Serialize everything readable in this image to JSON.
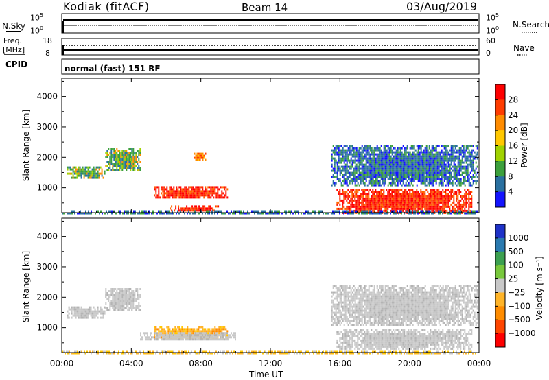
{
  "header": {
    "station": "Kodiak (fitACF)",
    "beam": "Beam 14",
    "date": "03/Aug/2019"
  },
  "side_labels": {
    "nsky": "N.Sky",
    "nsearch": "N.Search",
    "freq_line1": "Freq.",
    "freq_line2": "[MHz]",
    "nave": "Nave",
    "cpid": "CPID",
    "mode": "normal (fast) 151 RF"
  },
  "noise_panel": {
    "left_ticks": [
      "10^5",
      "10^0"
    ],
    "right_ticks": [
      "10^5",
      "10^0"
    ]
  },
  "freq_panel": {
    "left_ticks": [
      "18",
      "8"
    ],
    "right_ticks": [
      "60",
      "0"
    ]
  },
  "chart_data": [
    {
      "type": "heatmap",
      "name": "power",
      "ylabel": "Slant Range [km]",
      "ylim": [
        180,
        4600
      ],
      "yticks": [
        "4000",
        "3000",
        "2000",
        "1000"
      ],
      "xlim": [
        0,
        24
      ],
      "colorbar": {
        "label": "Power [dB]",
        "ticks": [
          "28",
          "24",
          "20",
          "16",
          "12",
          "8",
          "4"
        ],
        "colors": [
          "#ff0000",
          "#ff3c00",
          "#ff8c00",
          "#ffc800",
          "#a0d200",
          "#3ca03c",
          "#2a70a0",
          "#1414ff"
        ]
      },
      "regions": [
        {
          "t": [
            0.3,
            2.5
          ],
          "r": [
            1350,
            1700
          ],
          "level": "mid"
        },
        {
          "t": [
            2.5,
            4.5
          ],
          "r": [
            1600,
            2300
          ],
          "level": "mid"
        },
        {
          "t": [
            5.3,
            9.5
          ],
          "r": [
            650,
            1050
          ],
          "level": "high"
        },
        {
          "t": [
            6.2,
            9.0
          ],
          "r": [
            220,
            420
          ],
          "level": "high"
        },
        {
          "t": [
            7.6,
            8.3
          ],
          "r": [
            1900,
            2150
          ],
          "level": "mid-high"
        },
        {
          "t": [
            15.8,
            23.6
          ],
          "r": [
            200,
            950
          ],
          "level": "high"
        },
        {
          "t": [
            15.5,
            23.9
          ],
          "r": [
            1100,
            2400
          ],
          "level": "low"
        },
        {
          "t": [
            0.0,
            24.0
          ],
          "r": [
            190,
            260
          ],
          "level": "low"
        }
      ]
    },
    {
      "type": "heatmap",
      "name": "velocity",
      "ylabel": "Slant Range [km]",
      "ylim": [
        180,
        4600
      ],
      "yticks": [
        "4000",
        "3000",
        "2000",
        "1000"
      ],
      "xlim": [
        0,
        24
      ],
      "xlabel": "Time UT",
      "xticks": [
        "00:00",
        "04:00",
        "08:00",
        "12:00",
        "16:00",
        "20:00",
        "00:00"
      ],
      "colorbar": {
        "label": "Velocity [m s⁻¹]",
        "ticks": [
          "1000",
          "500",
          "100",
          "25",
          "−25",
          "−100",
          "−500",
          "−1000"
        ],
        "colors": [
          "#1e32c8",
          "#2a7ab0",
          "#3ca050",
          "#78c83c",
          "#c8c8c8",
          "#ffb428",
          "#ff8c00",
          "#ff4600",
          "#ff0000"
        ]
      },
      "regions": [
        {
          "t": [
            0.3,
            2.5
          ],
          "r": [
            1350,
            1700
          ],
          "level": "ground"
        },
        {
          "t": [
            2.5,
            4.5
          ],
          "r": [
            1600,
            2300
          ],
          "level": "ground"
        },
        {
          "t": [
            5.3,
            9.5
          ],
          "r": [
            650,
            1050
          ],
          "level": "neg-100"
        },
        {
          "t": [
            4.5,
            10.0
          ],
          "r": [
            600,
            850
          ],
          "level": "ground"
        },
        {
          "t": [
            15.8,
            23.6
          ],
          "r": [
            300,
            950
          ],
          "level": "ground"
        },
        {
          "t": [
            15.5,
            23.9
          ],
          "r": [
            1100,
            2400
          ],
          "level": "ground"
        },
        {
          "t": [
            0.0,
            24.0
          ],
          "r": [
            190,
            260
          ],
          "level": "neg-25"
        }
      ]
    }
  ]
}
